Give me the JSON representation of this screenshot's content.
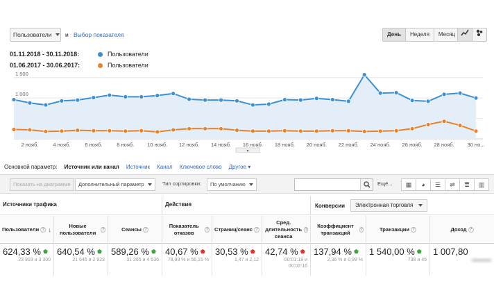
{
  "metric_select": {
    "value": "Пользователи"
  },
  "and_label": "и",
  "choose_metric_link": "Выбор показателя",
  "period_buttons": [
    "День",
    "Неделя",
    "Месяц"
  ],
  "legend": [
    {
      "dates": "01.11.2018 - 30.11.2018:",
      "name": "Пользователи",
      "color": "#3b8fd3"
    },
    {
      "dates": "01.06.2017 - 30.06.2017:",
      "name": "Пользователи",
      "color": "#e8822a"
    }
  ],
  "chart_data": {
    "type": "line",
    "x": [
      "1 нояб.",
      "2 нояб.",
      "3 нояб.",
      "4 нояб.",
      "5 нояб.",
      "6 нояб.",
      "7 нояб.",
      "8 нояб.",
      "9 нояб.",
      "10 нояб.",
      "11 нояб.",
      "12 нояб.",
      "13 нояб.",
      "14 нояб.",
      "15 нояб.",
      "16 нояб.",
      "17 нояб.",
      "18 нояб.",
      "19 нояб.",
      "20 нояб.",
      "21 нояб.",
      "22 нояб.",
      "23 нояб.",
      "24 нояб.",
      "25 нояб.",
      "26 нояб.",
      "27 нояб.",
      "28 нояб.",
      "29 нояб.",
      "30 нояб."
    ],
    "x_tick_labels": [
      "2 нояб.",
      "4 нояб.",
      "6 нояб.",
      "8 нояб.",
      "10 нояб.",
      "12 нояб.",
      "14 нояб.",
      "16 нояб.",
      "18 нояб.",
      "20 нояб.",
      "22 нояб.",
      "24 нояб.",
      "26 нояб.",
      "28 нояб.",
      "30 но..."
    ],
    "y_ticks": [
      "1 500",
      "1 000",
      "500"
    ],
    "ylim": [
      0,
      1700
    ],
    "series": [
      {
        "name": "Пользователи",
        "color": "#3b8fd3",
        "values": [
          960,
          880,
          830,
          930,
          950,
          1010,
          1070,
          1030,
          1030,
          1060,
          1110,
          970,
          950,
          950,
          930,
          830,
          850,
          960,
          950,
          990,
          960,
          920,
          1570,
          1120,
          1130,
          940,
          920,
          1090,
          1120,
          1000
        ]
      },
      {
        "name": "Пользователи",
        "color": "#e8822a",
        "values": [
          230,
          220,
          180,
          190,
          210,
          200,
          200,
          190,
          200,
          170,
          220,
          250,
          250,
          250,
          210,
          190,
          190,
          200,
          190,
          190,
          200,
          200,
          180,
          190,
          200,
          250,
          350,
          430,
          330,
          190
        ]
      }
    ]
  },
  "dimension_row": {
    "label": "Основной параметр:",
    "active": "Источник или канал",
    "options": [
      "Источник",
      "Канал",
      "Ключевое слово"
    ],
    "other": "Другое"
  },
  "toolbar": {
    "plot_rows": "Показать на диаграмме",
    "secondary_param": "Дополнительный параметр",
    "sort_label": "Тип сортировки:",
    "sort_value": "По умолчанию",
    "search_value": "",
    "search_more": "Ещё..."
  },
  "groups": {
    "traffic": "Источники трафика",
    "actions": "Действия",
    "conversions": "Конверсии",
    "conversions_select": "Электронная торговля"
  },
  "columns": [
    {
      "label": "Пользователи",
      "value": "624,33 %",
      "trend": "up",
      "sub": "23 903 и 3 300"
    },
    {
      "label": "Новые пользователи",
      "value": "640,54 %",
      "trend": "up",
      "sub": "21 646 и 2 923"
    },
    {
      "label": "Сеансы",
      "value": "589,26 %",
      "trend": "up",
      "sub": "31 265 и 4 536"
    },
    {
      "label": "Показатель отказов",
      "value": "40,67 %",
      "trend": "down",
      "sub": "78,99 % и 56,15 %"
    },
    {
      "label": "Страниц/сеанс",
      "value": "30,53 %",
      "trend": "down",
      "sub": "1,47 и 2,12"
    },
    {
      "label": "Сред. длительность сеанса",
      "value": "42,74 %",
      "trend": "down",
      "sub": "00:01:18 и 00:02:16"
    },
    {
      "label": "Коэффициент транзакций",
      "value": "137,94 %",
      "trend": "up",
      "sub": "2,36 % и 0,99 %"
    },
    {
      "label": "Транзакции",
      "value": "1 540,00 %",
      "trend": "up",
      "sub": "738 и 45"
    },
    {
      "label": "Доход",
      "value": "1 007,80",
      "trend": "",
      "sub": ""
    }
  ],
  "colors": {
    "blue": "#3b8fd3",
    "orange": "#e8822a",
    "fill": "#e3eef9",
    "green": "#3ea340",
    "red": "#d33333"
  }
}
